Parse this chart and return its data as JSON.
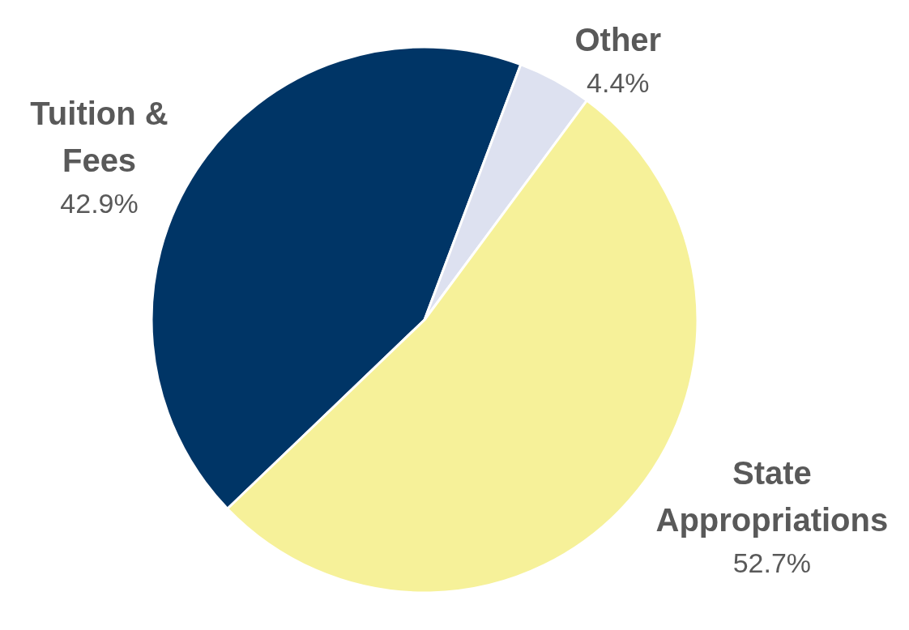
{
  "chart_data": {
    "type": "pie",
    "categories": [
      "Tuition & Fees",
      "Other",
      "State Appropriations"
    ],
    "values": [
      42.9,
      4.4,
      52.7
    ],
    "colors": [
      "#003566",
      "#dde1f0",
      "#f6f199"
    ],
    "value_labels": [
      "42.9%",
      "4.4%",
      "52.7%"
    ],
    "legend": false
  }
}
